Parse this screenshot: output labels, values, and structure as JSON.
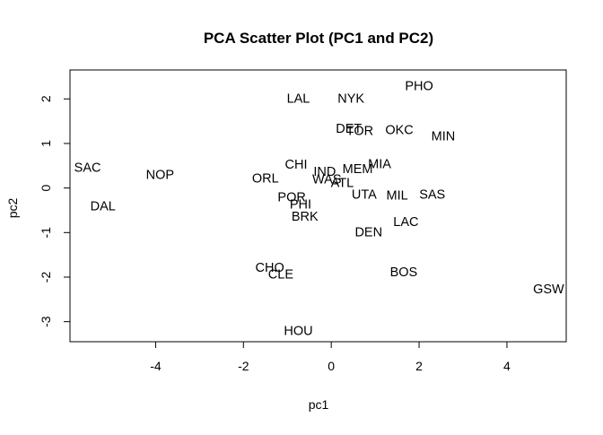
{
  "chart_data": {
    "type": "scatter",
    "title": "PCA Scatter Plot (PC1 and PC2)",
    "xlabel": "pc1",
    "ylabel": "pc2",
    "xlim": [
      -5.95,
      5.35
    ],
    "ylim": [
      -3.45,
      2.65
    ],
    "xticks": [
      "-4",
      "-2",
      "0",
      "2",
      "4"
    ],
    "xtick_values": [
      -4,
      -2,
      0,
      2,
      4
    ],
    "yticks": [
      "-3",
      "-2",
      "-1",
      "0",
      "1",
      "2"
    ],
    "ytick_values": [
      -3,
      -2,
      -1,
      0,
      1,
      2
    ],
    "grid": false,
    "points": [
      {
        "label": "PHO",
        "x": 2.0,
        "y": 2.28
      },
      {
        "label": "LAL",
        "x": -0.75,
        "y": 2.0
      },
      {
        "label": "NYK",
        "x": 0.45,
        "y": 2.0
      },
      {
        "label": "DET",
        "x": 0.4,
        "y": 1.32
      },
      {
        "label": "TOR",
        "x": 0.65,
        "y": 1.27
      },
      {
        "label": "OKC",
        "x": 1.55,
        "y": 1.29
      },
      {
        "label": "MIN",
        "x": 2.55,
        "y": 1.15
      },
      {
        "label": "SAC",
        "x": -5.55,
        "y": 0.45
      },
      {
        "label": "NOP",
        "x": -3.9,
        "y": 0.28
      },
      {
        "label": "CHI",
        "x": -0.8,
        "y": 0.52
      },
      {
        "label": "MIA",
        "x": 1.1,
        "y": 0.53
      },
      {
        "label": "MEM",
        "x": 0.6,
        "y": 0.42
      },
      {
        "label": "IND",
        "x": -0.15,
        "y": 0.35
      },
      {
        "label": "ORL",
        "x": -1.5,
        "y": 0.2
      },
      {
        "label": "WAS",
        "x": -0.1,
        "y": 0.18
      },
      {
        "label": "ATL",
        "x": 0.25,
        "y": 0.1
      },
      {
        "label": "UTA",
        "x": 0.75,
        "y": -0.16
      },
      {
        "label": "MIL",
        "x": 1.5,
        "y": -0.18
      },
      {
        "label": "SAS",
        "x": 2.3,
        "y": -0.16
      },
      {
        "label": "POR",
        "x": -0.9,
        "y": -0.22
      },
      {
        "label": "PHI",
        "x": -0.7,
        "y": -0.38
      },
      {
        "label": "DAL",
        "x": -5.2,
        "y": -0.42
      },
      {
        "label": "BRK",
        "x": -0.6,
        "y": -0.65
      },
      {
        "label": "LAC",
        "x": 1.7,
        "y": -0.77
      },
      {
        "label": "DEN",
        "x": 0.85,
        "y": -1.0
      },
      {
        "label": "CHO",
        "x": -1.4,
        "y": -1.8
      },
      {
        "label": "CLE",
        "x": -1.15,
        "y": -1.95
      },
      {
        "label": "BOS",
        "x": 1.65,
        "y": -1.9
      },
      {
        "label": "GSW",
        "x": 4.95,
        "y": -2.28
      },
      {
        "label": "HOU",
        "x": -0.75,
        "y": -3.22
      }
    ]
  }
}
